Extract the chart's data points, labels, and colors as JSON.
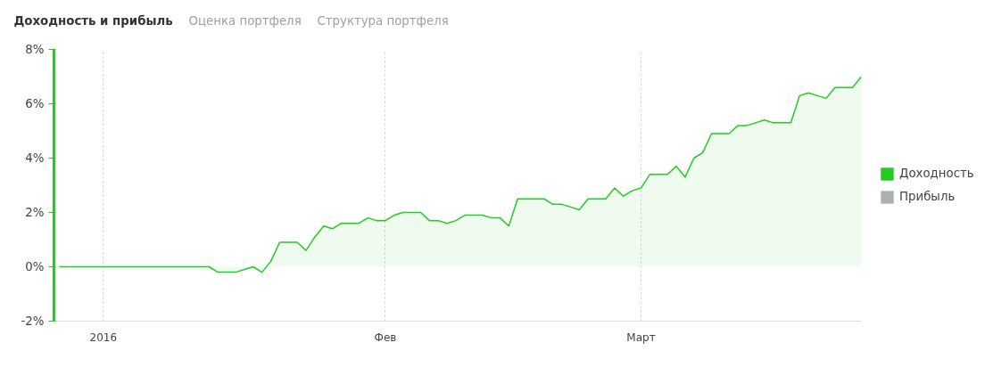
{
  "chart_data": {
    "type": "area",
    "title": "Доходность и прибыль",
    "annotations": [
      "Оценка портфеля",
      "Структура портфеля"
    ],
    "categories": [
      null,
      null,
      null,
      null,
      null,
      "2016",
      null,
      null,
      null,
      null,
      null,
      null,
      null,
      null,
      null,
      null,
      null,
      null,
      null,
      null,
      null,
      null,
      null,
      null,
      null,
      null,
      null,
      null,
      null,
      null,
      null,
      null,
      null,
      null,
      null,
      null,
      null,
      "Фев",
      null,
      null,
      null,
      null,
      null,
      null,
      null,
      null,
      null,
      null,
      null,
      null,
      null,
      null,
      null,
      null,
      null,
      null,
      null,
      null,
      null,
      null,
      null,
      null,
      null,
      null,
      null,
      null,
      "Март",
      null,
      null,
      null,
      null,
      null,
      null,
      null,
      null,
      null,
      null,
      null,
      null,
      null,
      null,
      null,
      null,
      null,
      null,
      null,
      null,
      null,
      null,
      null,
      null,
      null
    ],
    "series": [
      {
        "name": "Доходность",
        "color": "#22cc22",
        "values": [
          0,
          0,
          0,
          0,
          0,
          0,
          0,
          0,
          0,
          0,
          0,
          0,
          0,
          0,
          0,
          0,
          0,
          0,
          -0.2,
          -0.2,
          -0.2,
          -0.1,
          0.0,
          -0.2,
          0.2,
          0.9,
          0.9,
          0.9,
          0.6,
          1.1,
          1.5,
          1.4,
          1.6,
          1.6,
          1.6,
          1.8,
          1.7,
          1.7,
          1.9,
          2.0,
          2.0,
          2.0,
          1.7,
          1.7,
          1.6,
          1.7,
          1.9,
          1.9,
          1.9,
          1.8,
          1.8,
          1.5,
          2.5,
          2.5,
          2.5,
          2.5,
          2.3,
          2.3,
          2.2,
          2.1,
          2.5,
          2.5,
          2.5,
          2.9,
          2.6,
          2.8,
          2.9,
          3.4,
          3.4,
          3.4,
          3.7,
          3.3,
          4.0,
          4.2,
          4.9,
          4.9,
          4.9,
          5.2,
          5.2,
          5.3,
          5.4,
          5.3,
          5.3,
          5.3,
          6.3,
          6.4,
          6.3,
          6.2,
          6.6,
          6.6,
          6.6,
          7.0
        ]
      },
      {
        "name": "Прибыль",
        "color": "#aab0b3",
        "values": [
          null,
          null,
          null,
          null,
          null,
          null,
          null,
          null,
          null,
          null,
          null,
          null,
          null,
          null,
          null,
          null,
          null,
          null,
          null,
          null,
          null,
          null,
          null,
          null,
          null,
          null,
          null,
          null,
          null,
          null,
          null,
          null,
          null,
          null,
          null,
          null,
          null,
          null,
          null,
          null,
          null,
          null,
          null,
          null,
          null,
          null,
          null,
          null,
          null,
          null,
          null,
          null,
          null,
          null,
          null,
          null,
          null,
          null,
          null,
          null,
          null,
          null,
          null,
          null,
          null,
          null,
          null,
          null,
          null,
          null,
          null,
          null,
          null,
          null,
          null,
          null,
          null,
          null,
          null,
          null,
          null,
          null,
          null,
          null,
          null,
          null,
          null,
          null,
          null,
          null,
          null,
          null
        ]
      }
    ],
    "ylim": [
      -2,
      8
    ],
    "yticks": [
      {
        "value": -2,
        "label": "-2%"
      },
      {
        "value": 0,
        "label": "0%"
      },
      {
        "value": 2,
        "label": "2%"
      },
      {
        "value": 4,
        "label": "4%"
      },
      {
        "value": 6,
        "label": "6%"
      },
      {
        "value": 8,
        "label": "8%"
      }
    ],
    "grid": "x",
    "legend": "right"
  }
}
